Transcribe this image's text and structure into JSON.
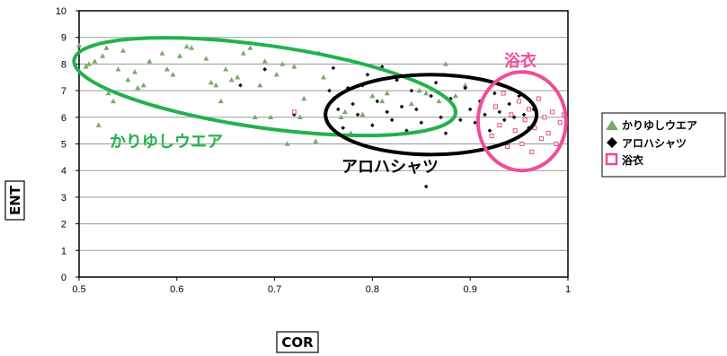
{
  "chart_data": {
    "type": "scatter",
    "xlabel": "COR",
    "ylabel": "ENT",
    "xlim": [
      0.5,
      1
    ],
    "ylim": [
      0,
      10
    ],
    "xticks": [
      "0.5",
      "0.6",
      "0.7",
      "0.8",
      "0.9",
      "1"
    ],
    "yticks": [
      "0",
      "1",
      "2",
      "3",
      "4",
      "5",
      "6",
      "7",
      "8",
      "9",
      "10"
    ],
    "grid": "horizontal",
    "legend_position": "right",
    "series": [
      {
        "name": "かりゆしウエア",
        "marker": "triangle",
        "color": "#77a96a",
        "points": [
          [
            0.5,
            8.7
          ],
          [
            0.507,
            7.9
          ],
          [
            0.51,
            8.0
          ],
          [
            0.516,
            8.1
          ],
          [
            0.52,
            5.7
          ],
          [
            0.524,
            8.3
          ],
          [
            0.528,
            8.6
          ],
          [
            0.53,
            6.9
          ],
          [
            0.535,
            6.6
          ],
          [
            0.54,
            7.8
          ],
          [
            0.545,
            8.5
          ],
          [
            0.55,
            7.4
          ],
          [
            0.557,
            7.7
          ],
          [
            0.56,
            7.1
          ],
          [
            0.566,
            7.2
          ],
          [
            0.572,
            8.1
          ],
          [
            0.58,
            6.4
          ],
          [
            0.585,
            8.4
          ],
          [
            0.59,
            7.8
          ],
          [
            0.596,
            7.6
          ],
          [
            0.603,
            8.3
          ],
          [
            0.61,
            8.65
          ],
          [
            0.615,
            8.6
          ],
          [
            0.63,
            8.2
          ],
          [
            0.635,
            7.3
          ],
          [
            0.64,
            7.2
          ],
          [
            0.645,
            6.6
          ],
          [
            0.65,
            7.8
          ],
          [
            0.656,
            7.4
          ],
          [
            0.662,
            7.5
          ],
          [
            0.668,
            8.4
          ],
          [
            0.675,
            8.6
          ],
          [
            0.68,
            6.0
          ],
          [
            0.685,
            7.2
          ],
          [
            0.69,
            8.1
          ],
          [
            0.696,
            6.0
          ],
          [
            0.702,
            7.6
          ],
          [
            0.708,
            8.0
          ],
          [
            0.713,
            5.0
          ],
          [
            0.72,
            7.9
          ],
          [
            0.726,
            6.0
          ],
          [
            0.73,
            6.7
          ],
          [
            0.742,
            5.1
          ],
          [
            0.75,
            7.5
          ],
          [
            0.76,
            6.7
          ],
          [
            0.768,
            6.0
          ],
          [
            0.772,
            6.2
          ],
          [
            0.778,
            5.4
          ],
          [
            0.79,
            6.1
          ],
          [
            0.8,
            6.8
          ],
          [
            0.81,
            6.6
          ],
          [
            0.815,
            6.9
          ],
          [
            0.825,
            7.6
          ],
          [
            0.84,
            6.5
          ],
          [
            0.848,
            7.0
          ],
          [
            0.855,
            6.9
          ],
          [
            0.868,
            6.6
          ],
          [
            0.875,
            8.0
          ],
          [
            0.885,
            6.8
          ],
          [
            0.895,
            7.2
          ]
        ]
      },
      {
        "name": "アロハシャツ",
        "marker": "diamond",
        "color": "#000000",
        "points": [
          [
            0.665,
            7.2
          ],
          [
            0.69,
            7.8
          ],
          [
            0.72,
            6.1
          ],
          [
            0.745,
            8.4
          ],
          [
            0.756,
            7.0
          ],
          [
            0.76,
            7.85
          ],
          [
            0.765,
            6.3
          ],
          [
            0.77,
            5.6
          ],
          [
            0.775,
            7.1
          ],
          [
            0.78,
            6.5
          ],
          [
            0.785,
            6.1
          ],
          [
            0.79,
            7.2
          ],
          [
            0.795,
            7.6
          ],
          [
            0.8,
            5.7
          ],
          [
            0.805,
            6.6
          ],
          [
            0.81,
            7.9
          ],
          [
            0.815,
            6.2
          ],
          [
            0.82,
            5.9
          ],
          [
            0.825,
            7.4
          ],
          [
            0.83,
            6.4
          ],
          [
            0.835,
            5.5
          ],
          [
            0.84,
            7.0
          ],
          [
            0.845,
            6.3
          ],
          [
            0.85,
            5.8
          ],
          [
            0.855,
            3.4
          ],
          [
            0.86,
            6.8
          ],
          [
            0.865,
            7.3
          ],
          [
            0.87,
            6.0
          ],
          [
            0.875,
            5.4
          ],
          [
            0.88,
            6.7
          ],
          [
            0.885,
            6.2
          ],
          [
            0.89,
            5.9
          ],
          [
            0.895,
            7.1
          ],
          [
            0.9,
            6.3
          ],
          [
            0.905,
            5.8
          ],
          [
            0.91,
            6.6
          ],
          [
            0.915,
            6.1
          ],
          [
            0.92,
            5.5
          ],
          [
            0.925,
            6.9
          ],
          [
            0.93,
            6.2
          ],
          [
            0.935,
            5.9
          ],
          [
            0.94,
            6.5
          ],
          [
            0.945,
            6.0
          ],
          [
            0.95,
            6.8
          ],
          [
            0.955,
            6.1
          ],
          [
            0.96,
            5.6
          ],
          [
            0.965,
            6.3
          ]
        ]
      },
      {
        "name": "浴衣",
        "marker": "square",
        "color": "#e8489a",
        "points": [
          [
            0.72,
            6.2
          ],
          [
            0.922,
            5.3
          ],
          [
            0.926,
            6.4
          ],
          [
            0.93,
            5.7
          ],
          [
            0.934,
            6.9
          ],
          [
            0.938,
            4.9
          ],
          [
            0.942,
            6.1
          ],
          [
            0.946,
            5.5
          ],
          [
            0.95,
            6.6
          ],
          [
            0.953,
            5.0
          ],
          [
            0.956,
            5.9
          ],
          [
            0.96,
            6.3
          ],
          [
            0.963,
            4.7
          ],
          [
            0.966,
            5.6
          ],
          [
            0.97,
            6.7
          ],
          [
            0.973,
            5.2
          ],
          [
            0.976,
            6.0
          ],
          [
            0.98,
            5.4
          ],
          [
            0.984,
            6.2
          ],
          [
            0.988,
            5.0
          ],
          [
            0.992,
            5.8
          ],
          [
            0.996,
            6.1
          ]
        ]
      }
    ],
    "annotations": [
      {
        "text": "かりゆしウエア",
        "color": "#22b14c",
        "ellipse": {
          "cx": 0.69,
          "cy": 7.15,
          "rx": 0.197,
          "ry": 1.55,
          "rotate": 8
        }
      },
      {
        "text": "アロハシャツ",
        "color": "#000000",
        "ellipse": {
          "cx": 0.86,
          "cy": 6.1,
          "rx": 0.108,
          "ry": 1.5,
          "rotate": 0
        }
      },
      {
        "text": "浴衣",
        "color": "#ee4d9b",
        "ellipse": {
          "cx": 0.953,
          "cy": 5.85,
          "rx": 0.045,
          "ry": 1.85,
          "rotate": 0
        }
      }
    ]
  }
}
